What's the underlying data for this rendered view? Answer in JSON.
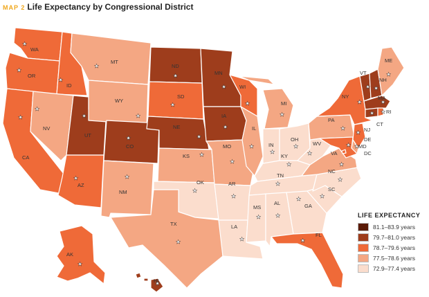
{
  "header": {
    "map_label": "MAP 2",
    "title": "Life Expectancy by Congressional District"
  },
  "legend": {
    "title": "LIFE EXPECTANCY",
    "items": [
      {
        "label": "81.1–83.9 years",
        "color": "#5a1a06"
      },
      {
        "label": "79.7–81.0 years",
        "color": "#9e3d1c"
      },
      {
        "label": "78.7–79.6 years",
        "color": "#ef6a38"
      },
      {
        "label": "77.5–78.6 years",
        "color": "#f4a783"
      },
      {
        "label": "72.9–77.4 years",
        "color": "#fbddcd"
      }
    ]
  },
  "states": [
    {
      "abbr": "WA",
      "cls": 2
    },
    {
      "abbr": "OR",
      "cls": 2
    },
    {
      "abbr": "CA",
      "cls": 2
    },
    {
      "abbr": "ID",
      "cls": 2
    },
    {
      "abbr": "NV",
      "cls": 3
    },
    {
      "abbr": "AZ",
      "cls": 2
    },
    {
      "abbr": "UT",
      "cls": 1
    },
    {
      "abbr": "MT",
      "cls": 3
    },
    {
      "abbr": "WY",
      "cls": 3
    },
    {
      "abbr": "CO",
      "cls": 1
    },
    {
      "abbr": "NM",
      "cls": 3
    },
    {
      "abbr": "ND",
      "cls": 1
    },
    {
      "abbr": "SD",
      "cls": 2
    },
    {
      "abbr": "NE",
      "cls": 1
    },
    {
      "abbr": "KS",
      "cls": 3
    },
    {
      "abbr": "OK",
      "cls": 4
    },
    {
      "abbr": "TX",
      "cls": 3
    },
    {
      "abbr": "MN",
      "cls": 1
    },
    {
      "abbr": "IA",
      "cls": 1
    },
    {
      "abbr": "MO",
      "cls": 3
    },
    {
      "abbr": "AR",
      "cls": 4
    },
    {
      "abbr": "LA",
      "cls": 4
    },
    {
      "abbr": "WI",
      "cls": 2
    },
    {
      "abbr": "IL",
      "cls": 3
    },
    {
      "abbr": "MI",
      "cls": 3
    },
    {
      "abbr": "IN",
      "cls": 4
    },
    {
      "abbr": "OH",
      "cls": 4
    },
    {
      "abbr": "KY",
      "cls": 4
    },
    {
      "abbr": "TN",
      "cls": 4
    },
    {
      "abbr": "MS",
      "cls": 4
    },
    {
      "abbr": "AL",
      "cls": 4
    },
    {
      "abbr": "GA",
      "cls": 4
    },
    {
      "abbr": "FL",
      "cls": 2
    },
    {
      "abbr": "SC",
      "cls": 4
    },
    {
      "abbr": "NC",
      "cls": 4
    },
    {
      "abbr": "VA",
      "cls": 3
    },
    {
      "abbr": "WV",
      "cls": 4
    },
    {
      "abbr": "PA",
      "cls": 3
    },
    {
      "abbr": "NY",
      "cls": 2
    },
    {
      "abbr": "VT",
      "cls": 1
    },
    {
      "abbr": "NH",
      "cls": 1
    },
    {
      "abbr": "ME",
      "cls": 3
    },
    {
      "abbr": "MA",
      "cls": 1
    },
    {
      "abbr": "CT",
      "cls": 1
    },
    {
      "abbr": "RI",
      "cls": 2
    },
    {
      "abbr": "NJ",
      "cls": 2
    },
    {
      "abbr": "DE",
      "cls": 3
    },
    {
      "abbr": "MD",
      "cls": 2
    },
    {
      "abbr": "DC",
      "cls": 2
    },
    {
      "abbr": "AK",
      "cls": 2
    },
    {
      "abbr": "HI",
      "cls": 1
    }
  ]
}
